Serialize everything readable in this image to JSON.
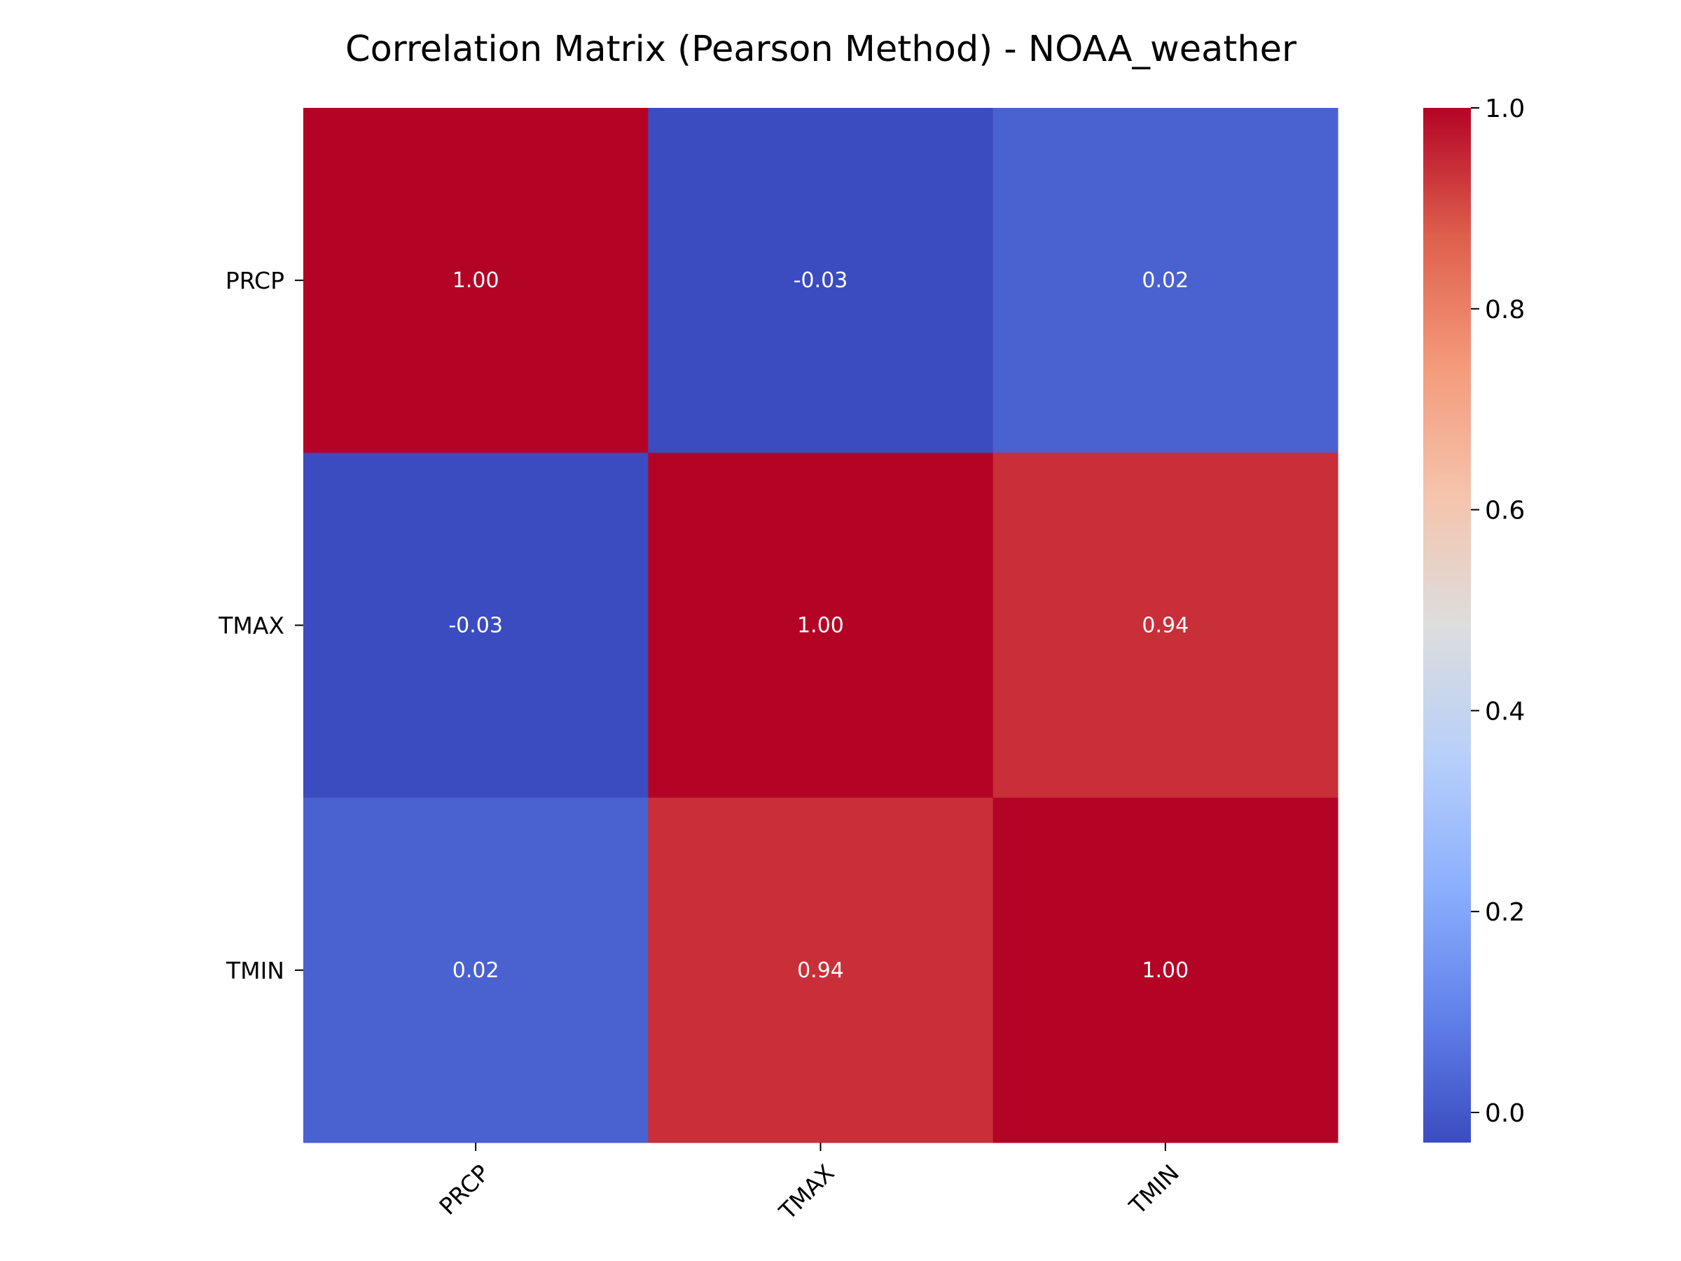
{
  "chart_data": {
    "type": "heatmap",
    "title": "Correlation Matrix (Pearson Method) - NOAA_weather",
    "xlabel": "",
    "ylabel": "",
    "x_categories": [
      "PRCP",
      "TMAX",
      "TMIN"
    ],
    "y_categories": [
      "PRCP",
      "TMAX",
      "TMIN"
    ],
    "values": [
      [
        1.0,
        -0.03,
        0.02
      ],
      [
        -0.03,
        1.0,
        0.94
      ],
      [
        0.02,
        0.94,
        1.0
      ]
    ],
    "annotations": [
      [
        "1.00",
        "-0.03",
        "0.02"
      ],
      [
        "-0.03",
        "1.00",
        "0.94"
      ],
      [
        "0.02",
        "0.94",
        "1.00"
      ]
    ],
    "colormap": "coolwarm",
    "colorbar": {
      "range": [
        -0.03,
        1.0
      ],
      "ticks": [
        0.0,
        0.2,
        0.4,
        0.6,
        0.8,
        1.0
      ],
      "tick_labels": [
        "0.0",
        "0.2",
        "0.4",
        "0.6",
        "0.8",
        "1.0"
      ]
    },
    "grid": false,
    "x_tick_rotation": "45 degrees"
  }
}
